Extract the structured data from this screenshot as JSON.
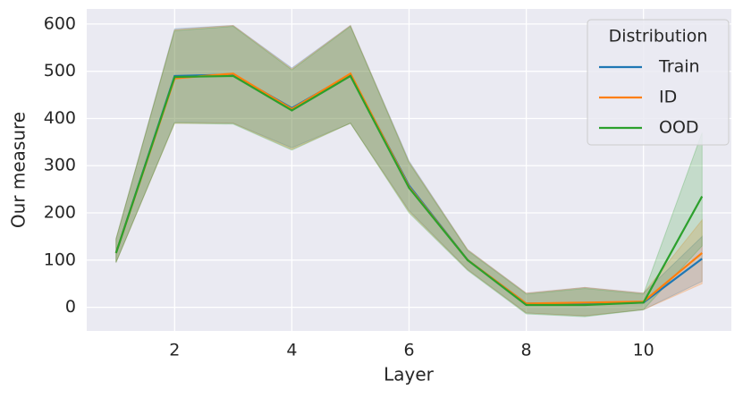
{
  "chart_data": {
    "type": "line",
    "x_label": "Layer",
    "y_label": "Our measure",
    "x": [
      1,
      2,
      3,
      4,
      5,
      6,
      7,
      8,
      9,
      10,
      11
    ],
    "series": [
      {
        "name": "Train",
        "color": "#1f77b4",
        "values": [
          115,
          490,
          493,
          422,
          493,
          258,
          100,
          8,
          8,
          10,
          103
        ],
        "lower": [
          95,
          392,
          390,
          338,
          390,
          205,
          80,
          -12,
          -18,
          -5,
          55
        ],
        "upper": [
          145,
          590,
          597,
          507,
          597,
          310,
          122,
          30,
          42,
          30,
          150
        ]
      },
      {
        "name": "ID",
        "color": "#ff7f0e",
        "values": [
          115,
          485,
          495,
          420,
          495,
          255,
          100,
          8,
          10,
          12,
          115
        ],
        "lower": [
          95,
          390,
          390,
          335,
          390,
          203,
          80,
          -12,
          -18,
          -5,
          50
        ],
        "upper": [
          145,
          588,
          597,
          505,
          597,
          308,
          122,
          30,
          42,
          30,
          185
        ]
      },
      {
        "name": "OOD",
        "color": "#2ca02c",
        "values": [
          115,
          488,
          490,
          417,
          490,
          253,
          100,
          5,
          5,
          10,
          235
        ],
        "lower": [
          95,
          390,
          388,
          333,
          390,
          200,
          78,
          -14,
          -20,
          -5,
          130
        ],
        "upper": [
          145,
          586,
          595,
          503,
          595,
          306,
          120,
          28,
          40,
          28,
          370
        ]
      }
    ],
    "legend_title": "Distribution",
    "legend_position": "upper right",
    "xlim": [
      0.5,
      11.5
    ],
    "xticks": [
      2,
      4,
      6,
      8,
      10
    ],
    "ylim": [
      -50,
      632
    ],
    "yticks": [
      0,
      100,
      200,
      300,
      400,
      500,
      600
    ],
    "grid": true
  }
}
